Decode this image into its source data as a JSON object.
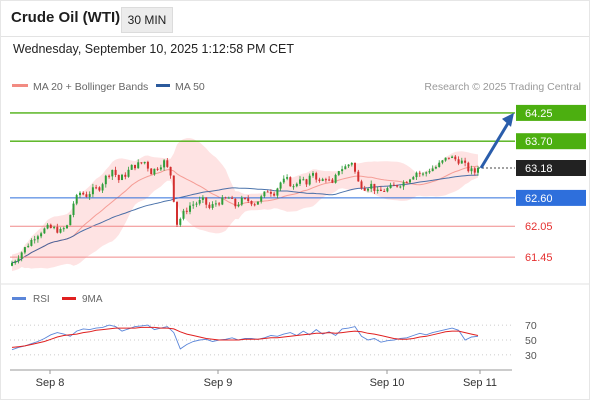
{
  "header": {
    "instrument": "Crude Oil (WTI)",
    "interval": "30 MIN",
    "datetime": "Wednesday, September 10, 2025 1:12:58 PM CET"
  },
  "legend": {
    "ma20_label": "MA 20 + Bollinger Bands",
    "ma50_label": "MA 50",
    "credit": "Research © 2025 Trading Central",
    "ma20_color": "#f28b82",
    "ma50_color": "#2b5a9c"
  },
  "chart_data": [
    {
      "type": "candlestick",
      "x_ticks": [
        "Sep 8",
        "Sep 9",
        "Sep 10",
        "Sep 11"
      ],
      "ylim": [
        61.2,
        64.5
      ],
      "grid": false,
      "legend": "top-left",
      "price_path": [
        61.28,
        61.4,
        61.55,
        61.7,
        61.85,
        61.95,
        62.02,
        62.0,
        61.95,
        62.05,
        62.5,
        62.7,
        62.65,
        62.75,
        62.8,
        63.0,
        63.15,
        62.95,
        63.05,
        63.2,
        63.25,
        63.3,
        63.1,
        63.2,
        63.3,
        63.05,
        62.1,
        62.3,
        62.45,
        62.5,
        62.55,
        62.4,
        62.5,
        62.55,
        62.6,
        62.45,
        62.55,
        62.55,
        62.5,
        62.6,
        62.75,
        62.7,
        62.9,
        62.95,
        62.8,
        63.0,
        62.85,
        63.1,
        62.9,
        63.0,
        62.85,
        63.15,
        63.2,
        63.3,
        62.9,
        62.8,
        62.85,
        62.7,
        62.75,
        62.8,
        62.85,
        62.9,
        63.0,
        63.1,
        63.05,
        63.15,
        63.2,
        63.3,
        63.4,
        63.35,
        63.3,
        63.15,
        63.1
      ],
      "key_levels": [
        {
          "label": "64.25",
          "value": 64.25,
          "type": "resistance"
        },
        {
          "label": "63.70",
          "value": 63.7,
          "type": "resistance"
        },
        {
          "label": "63.18",
          "value": 63.18,
          "type": "last"
        },
        {
          "label": "62.60",
          "value": 62.6,
          "type": "pivot"
        },
        {
          "label": "62.05",
          "value": 62.05,
          "type": "support"
        },
        {
          "label": "61.45",
          "value": 61.45,
          "type": "support"
        }
      ],
      "forecast_target": 64.25
    },
    {
      "type": "line",
      "series": [
        {
          "name": "RSI",
          "color": "#5b86d9"
        },
        {
          "name": "9MA",
          "color": "#e02020"
        }
      ],
      "y_ticks": [
        "70",
        "50",
        "30"
      ],
      "ylim": [
        15,
        85
      ],
      "rsi": [
        37,
        40,
        42,
        45,
        48,
        52,
        57,
        60,
        58,
        55,
        62,
        65,
        64,
        66,
        67,
        70,
        68,
        62,
        65,
        68,
        69,
        70,
        64,
        66,
        68,
        60,
        38,
        44,
        48,
        50,
        51,
        48,
        50,
        51,
        53,
        50,
        52,
        52,
        51,
        53,
        56,
        55,
        58,
        60,
        56,
        62,
        57,
        64,
        58,
        61,
        56,
        65,
        66,
        68,
        55,
        50,
        52,
        47,
        49,
        50,
        52,
        53,
        56,
        59,
        57,
        60,
        62,
        64,
        66,
        63,
        50,
        54,
        55
      ],
      "ma": [
        40,
        41,
        42,
        44,
        46,
        48,
        51,
        54,
        56,
        57,
        58,
        60,
        61,
        63,
        64,
        65,
        66,
        66,
        66,
        66,
        67,
        67,
        67,
        66,
        66,
        65,
        61,
        58,
        56,
        54,
        52,
        51,
        50,
        50,
        50,
        50,
        51,
        51,
        51,
        52,
        53,
        53,
        54,
        55,
        56,
        57,
        58,
        59,
        59,
        60,
        59,
        60,
        61,
        62,
        61,
        59,
        58,
        56,
        54,
        52,
        51,
        51,
        52,
        54,
        55,
        57,
        59,
        61,
        62,
        62,
        60,
        58,
        56
      ]
    }
  ]
}
